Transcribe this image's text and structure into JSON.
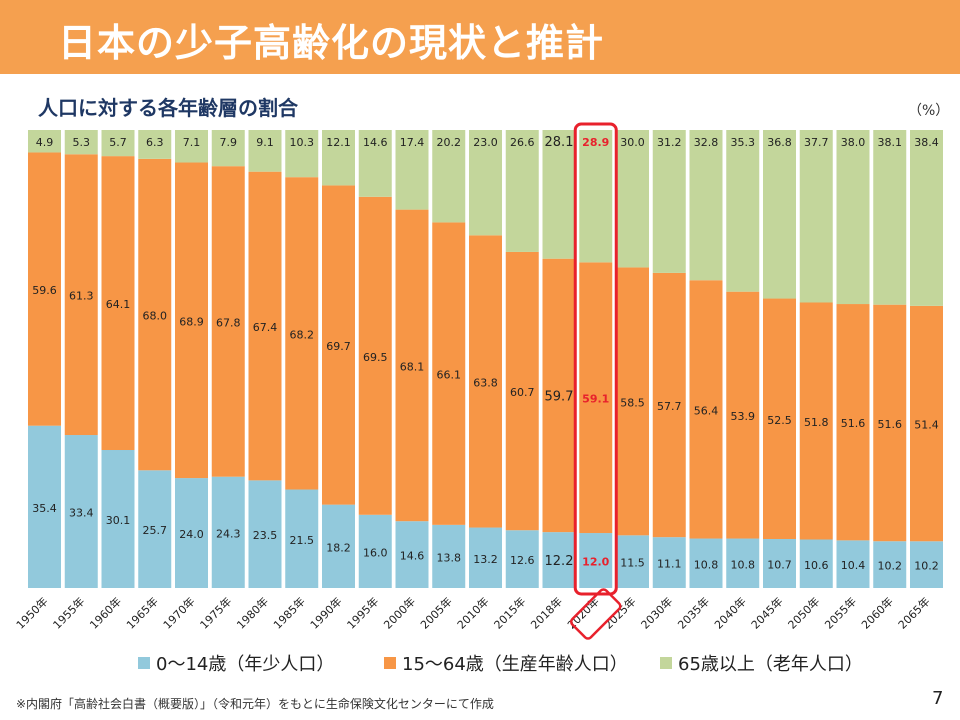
{
  "header": {
    "title": "日本の少子高齢化の現状と推計"
  },
  "chart_data": {
    "type": "bar",
    "stacked": true,
    "percent": true,
    "title": "人口に対する各年齢層の割合",
    "unit_label": "（%）",
    "categories": [
      "1950年",
      "1955年",
      "1960年",
      "1965年",
      "1970年",
      "1975年",
      "1980年",
      "1985年",
      "1990年",
      "1995年",
      "2000年",
      "2005年",
      "2010年",
      "2015年",
      "2018年",
      "2020年",
      "2025年",
      "2030年",
      "2035年",
      "2040年",
      "2045年",
      "2050年",
      "2055年",
      "2060年",
      "2065年"
    ],
    "series": [
      {
        "name": "0～14歳（年少人口）",
        "color": "#92c9dc",
        "values": [
          35.4,
          33.4,
          30.1,
          25.7,
          24.0,
          24.3,
          23.5,
          21.5,
          18.2,
          16.0,
          14.6,
          13.8,
          13.2,
          12.6,
          12.2,
          12.0,
          11.5,
          11.1,
          10.8,
          10.8,
          10.7,
          10.6,
          10.4,
          10.2,
          10.2
        ]
      },
      {
        "name": "15～64歳（生産年齢人口）",
        "color": "#f79646",
        "values": [
          59.6,
          61.3,
          64.1,
          68.0,
          68.9,
          67.8,
          67.4,
          68.2,
          69.7,
          69.5,
          68.1,
          66.1,
          63.8,
          60.7,
          59.7,
          59.1,
          58.5,
          57.7,
          56.4,
          53.9,
          52.5,
          51.8,
          51.6,
          51.6,
          51.4
        ]
      },
      {
        "name": "65歳以上（老年人口）",
        "color": "#c3d69b",
        "values": [
          4.9,
          5.3,
          5.7,
          6.3,
          7.1,
          7.9,
          9.1,
          10.3,
          12.1,
          14.6,
          17.4,
          20.2,
          23.0,
          26.6,
          28.1,
          28.9,
          30.0,
          31.2,
          32.8,
          35.3,
          36.8,
          37.7,
          38.0,
          38.1,
          38.4
        ]
      }
    ],
    "highlight_category": "2020年",
    "ylim": [
      0,
      100
    ]
  },
  "footer": {
    "source": "※内閣府「高齢社会白書（概要版）」（令和元年）をもとに生命保険文化センターにて作成",
    "page": "7"
  }
}
